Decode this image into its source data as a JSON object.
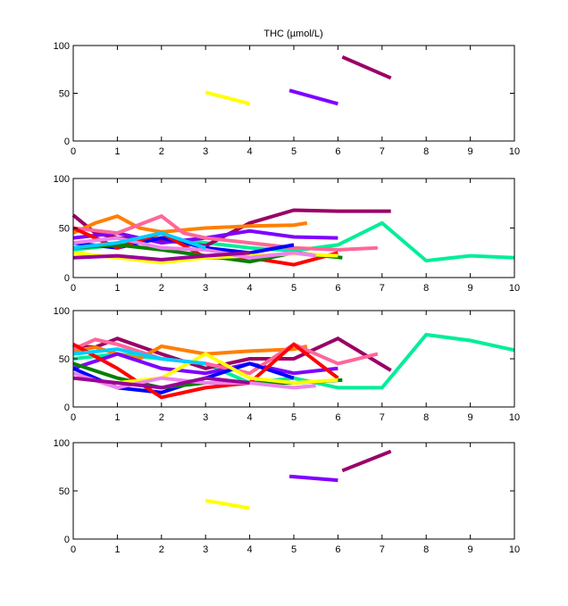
{
  "figure": {
    "title": "THC (µmol/L)"
  },
  "chart_data": [
    {
      "type": "line",
      "xlim": [
        0,
        10
      ],
      "ylim": [
        0,
        100
      ],
      "xticks": [
        "0",
        "1",
        "2",
        "3",
        "4",
        "5",
        "6",
        "7",
        "8",
        "9",
        "10"
      ],
      "yticks": [
        "0",
        "50",
        "100"
      ],
      "grid": false,
      "series": [
        {
          "color": "#ffff00",
          "x": [
            3.0,
            4.0
          ],
          "y": [
            51,
            39
          ]
        },
        {
          "color": "#7f00ff",
          "x": [
            4.9,
            6.0
          ],
          "y": [
            53,
            39
          ]
        },
        {
          "color": "#990066",
          "x": [
            6.1,
            7.2
          ],
          "y": [
            88,
            66
          ]
        }
      ]
    },
    {
      "type": "line",
      "xlim": [
        0,
        10
      ],
      "ylim": [
        0,
        100
      ],
      "xticks": [
        "0",
        "1",
        "2",
        "3",
        "4",
        "5",
        "6",
        "7",
        "8",
        "9",
        "10"
      ],
      "yticks": [
        "0",
        "50",
        "100"
      ],
      "grid": false,
      "series": [
        {
          "color": "#00ee99",
          "x": [
            0,
            1,
            2,
            3,
            4,
            5,
            6,
            7,
            8,
            9,
            10
          ],
          "y": [
            28,
            33,
            40,
            35,
            30,
            27,
            33,
            55,
            17,
            22,
            20
          ]
        },
        {
          "color": "#990066",
          "x": [
            0,
            0.5,
            1,
            2,
            3,
            4,
            5,
            6,
            7.2
          ],
          "y": [
            63,
            45,
            40,
            38,
            32,
            55,
            68,
            67,
            67
          ]
        },
        {
          "color": "#ff7f00",
          "x": [
            0,
            0.5,
            1,
            1.5,
            2,
            3,
            4,
            5,
            5.3
          ],
          "y": [
            45,
            55,
            62,
            50,
            46,
            50,
            52,
            53,
            55
          ]
        },
        {
          "color": "#7f00ff",
          "x": [
            0,
            1,
            2,
            3,
            4,
            5,
            6
          ],
          "y": [
            40,
            45,
            35,
            40,
            47,
            41,
            40
          ]
        },
        {
          "color": "#ff6699",
          "x": [
            0,
            1,
            2,
            2.5,
            3,
            4,
            5,
            6,
            6.9
          ],
          "y": [
            50,
            45,
            62,
            45,
            40,
            35,
            30,
            28,
            30
          ]
        },
        {
          "color": "#0000ff",
          "x": [
            0,
            1,
            2,
            3,
            4,
            5
          ],
          "y": [
            35,
            30,
            40,
            30,
            25,
            33
          ]
        },
        {
          "color": "#ff0000",
          "x": [
            0,
            1,
            2,
            3,
            4,
            5,
            6
          ],
          "y": [
            50,
            30,
            45,
            20,
            20,
            13,
            25
          ]
        },
        {
          "color": "#008000",
          "x": [
            0,
            1,
            2,
            3,
            4,
            5,
            6.1
          ],
          "y": [
            30,
            33,
            28,
            22,
            16,
            25,
            20
          ]
        },
        {
          "color": "#ffff00",
          "x": [
            0,
            1,
            2,
            3,
            4,
            5,
            6
          ],
          "y": [
            25,
            20,
            15,
            20,
            22,
            24,
            22
          ]
        },
        {
          "color": "#ee82ee",
          "x": [
            0,
            1,
            2,
            3,
            4,
            5,
            5.5
          ],
          "y": [
            35,
            40,
            30,
            28,
            20,
            25,
            22
          ]
        },
        {
          "color": "#990099",
          "x": [
            0,
            1,
            2,
            3,
            4
          ],
          "y": [
            20,
            22,
            18,
            22,
            25
          ]
        },
        {
          "color": "#00ccff",
          "x": [
            0,
            1,
            2,
            3
          ],
          "y": [
            30,
            35,
            45,
            30
          ]
        }
      ]
    },
    {
      "type": "line",
      "xlim": [
        0,
        10
      ],
      "ylim": [
        0,
        100
      ],
      "xticks": [
        "0",
        "1",
        "2",
        "3",
        "4",
        "5",
        "6",
        "7",
        "8",
        "9",
        "10"
      ],
      "yticks": [
        "0",
        "50",
        "100"
      ],
      "grid": false,
      "series": [
        {
          "color": "#00ee99",
          "x": [
            0,
            1,
            2,
            3,
            4,
            5,
            6,
            7,
            8,
            9,
            10
          ],
          "y": [
            50,
            55,
            50,
            45,
            25,
            30,
            20,
            20,
            75,
            69,
            59
          ]
        },
        {
          "color": "#990066",
          "x": [
            0,
            0.5,
            1,
            2,
            3,
            4,
            5,
            6,
            7.2
          ],
          "y": [
            63,
            62,
            71,
            55,
            40,
            50,
            50,
            71,
            38
          ]
        },
        {
          "color": "#ff7f00",
          "x": [
            0,
            0.5,
            1,
            1.5,
            2,
            3,
            4,
            5,
            5.3
          ],
          "y": [
            58,
            62,
            55,
            50,
            63,
            55,
            58,
            60,
            63
          ]
        },
        {
          "color": "#7f00ff",
          "x": [
            0,
            1,
            2,
            3,
            4,
            5,
            6
          ],
          "y": [
            40,
            55,
            40,
            35,
            45,
            35,
            40
          ]
        },
        {
          "color": "#ff6699",
          "x": [
            0,
            0.5,
            1,
            2,
            3,
            4,
            5,
            6,
            6.9
          ],
          "y": [
            60,
            70,
            65,
            50,
            45,
            35,
            65,
            45,
            55
          ]
        },
        {
          "color": "#0000ff",
          "x": [
            0,
            1,
            2,
            3,
            4,
            5
          ],
          "y": [
            40,
            20,
            15,
            30,
            45,
            30
          ]
        },
        {
          "color": "#ff0000",
          "x": [
            0,
            1,
            2,
            3,
            4,
            5,
            6
          ],
          "y": [
            65,
            40,
            10,
            20,
            25,
            65,
            30
          ]
        },
        {
          "color": "#008000",
          "x": [
            0,
            1,
            2,
            3,
            4,
            5,
            6.1
          ],
          "y": [
            45,
            30,
            20,
            25,
            25,
            25,
            28
          ]
        },
        {
          "color": "#ffff00",
          "x": [
            0,
            1,
            2,
            3,
            4,
            5,
            6
          ],
          "y": [
            30,
            25,
            30,
            55,
            30,
            25,
            28
          ]
        },
        {
          "color": "#ee82ee",
          "x": [
            0,
            1,
            2,
            3,
            4,
            5,
            5.5
          ],
          "y": [
            35,
            20,
            30,
            25,
            25,
            20,
            22
          ]
        },
        {
          "color": "#990099",
          "x": [
            0,
            1,
            2,
            3,
            4
          ],
          "y": [
            30,
            25,
            20,
            30,
            25
          ]
        },
        {
          "color": "#00ccff",
          "x": [
            0,
            1,
            2,
            3
          ],
          "y": [
            55,
            60,
            50,
            45
          ]
        }
      ]
    },
    {
      "type": "line",
      "xlim": [
        0,
        10
      ],
      "ylim": [
        0,
        100
      ],
      "xticks": [
        "0",
        "1",
        "2",
        "3",
        "4",
        "5",
        "6",
        "7",
        "8",
        "9",
        "10"
      ],
      "yticks": [
        "0",
        "50",
        "100"
      ],
      "grid": false,
      "series": [
        {
          "color": "#ffff00",
          "x": [
            3.0,
            4.0
          ],
          "y": [
            40,
            32
          ]
        },
        {
          "color": "#7f00ff",
          "x": [
            4.9,
            6.0
          ],
          "y": [
            65,
            61
          ]
        },
        {
          "color": "#990066",
          "x": [
            6.1,
            7.2
          ],
          "y": [
            71,
            91
          ]
        }
      ]
    }
  ]
}
